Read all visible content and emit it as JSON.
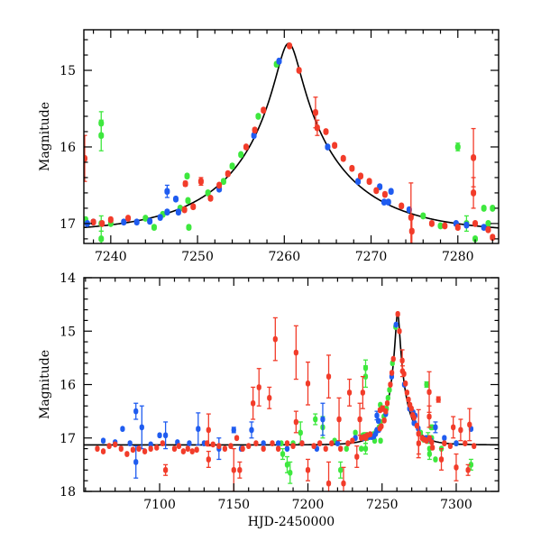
{
  "chart_data": {
    "type": "scatter",
    "colors": {
      "blue": "#1f5cf0",
      "green": "#3ee83e",
      "red": "#f23c2a",
      "model": "#000000"
    },
    "model": {
      "type": "point-lens",
      "t0": 7260.5,
      "u0": 0.102,
      "tE": 12.7,
      "baseline_mag": 17.13
    },
    "panels": [
      {
        "name": "zoom",
        "xlabel": "",
        "ylabel": "Magnitude",
        "xlim": [
          7236.9,
          7284.7
        ],
        "ylim": [
          17.26,
          14.47
        ],
        "xticks": [
          7240,
          7250,
          7260,
          7270,
          7280
        ],
        "xtick_labels": [
          "7240",
          "7250",
          "7260",
          "7270",
          "7280"
        ],
        "xminor": 2,
        "yticks": [
          15,
          16,
          17
        ],
        "ytick_labels": [
          "15",
          "16",
          "17"
        ],
        "yminor": 0.2
      },
      {
        "name": "full",
        "xlabel": "HJD-2450000",
        "ylabel": "Magnitude",
        "xlim": [
          7048.9,
          7328.6
        ],
        "ylim": [
          18,
          14
        ],
        "xticks": [
          7100,
          7150,
          7200,
          7250,
          7300
        ],
        "xtick_labels": [
          "7100",
          "7150",
          "7200",
          "7250",
          "7300"
        ],
        "xminor": 10,
        "yticks": [
          14,
          15,
          16,
          17,
          18
        ],
        "ytick_labels": [
          "14",
          "15",
          "16",
          "17",
          "18"
        ],
        "yminor": 0.2
      }
    ],
    "series": [
      {
        "name": "green",
        "color": "#3ee83e",
        "points": [
          [
            7182,
            17.1,
            0
          ],
          [
            7183,
            17.3,
            0.1
          ],
          [
            7186,
            17.5,
            0.15
          ],
          [
            7188,
            17.65,
            0.2
          ],
          [
            7190,
            17.1,
            0
          ],
          [
            7195,
            16.9,
            0.2
          ],
          [
            7205,
            16.65,
            0.1
          ],
          [
            7210,
            16.8,
            0.2
          ],
          [
            7218,
            17.05,
            0
          ],
          [
            7222,
            17.6,
            0.15
          ],
          [
            7226,
            17.2,
            0
          ],
          [
            7232,
            16.9,
            0
          ],
          [
            7236,
            17.2,
            0
          ],
          [
            7237.1,
            16.95,
            0
          ],
          [
            7238.9,
            15.69,
            0.15
          ],
          [
            7238.9,
            15.85,
            0.2
          ],
          [
            7238.9,
            17.0,
            0.1
          ],
          [
            7238.9,
            17.2,
            0.1
          ],
          [
            7240,
            17.0,
            0
          ],
          [
            7244,
            16.93,
            0
          ],
          [
            7245,
            17.05,
            0
          ],
          [
            7246,
            16.88,
            0
          ],
          [
            7248,
            16.8,
            0
          ],
          [
            7248.8,
            16.38,
            0
          ],
          [
            7248.9,
            16.7,
            0
          ],
          [
            7249,
            17.05,
            0
          ],
          [
            7251.2,
            16.6,
            0
          ],
          [
            7253,
            16.45,
            0
          ],
          [
            7254,
            16.25,
            0
          ],
          [
            7255,
            16.1,
            0
          ],
          [
            7257,
            15.6,
            0
          ],
          [
            7259.1,
            14.92,
            0
          ],
          [
            7276,
            16.9,
            0
          ],
          [
            7278,
            17.03,
            0
          ],
          [
            7280,
            16.0,
            0.05
          ],
          [
            7281,
            17.0,
            0.1
          ],
          [
            7282,
            17.2,
            0
          ],
          [
            7283,
            16.8,
            0
          ],
          [
            7283.5,
            17.0,
            0
          ],
          [
            7284,
            16.8,
            0
          ],
          [
            7282,
            17.3,
            0.1
          ],
          [
            7286,
            17.4,
            0
          ],
          [
            7290,
            17.2,
            0
          ],
          [
            7300,
            17.1,
            0
          ],
          [
            7310,
            17.5,
            0.1
          ]
        ]
      },
      {
        "name": "blue",
        "color": "#1f5cf0",
        "points": [
          [
            7062,
            17.05,
            0
          ],
          [
            7070,
            17.08,
            0
          ],
          [
            7075,
            16.83,
            0
          ],
          [
            7080,
            17.1,
            0
          ],
          [
            7084,
            16.5,
            0.15
          ],
          [
            7084,
            17.45,
            0.3
          ],
          [
            7088,
            16.8,
            0.4
          ],
          [
            7094,
            17.12,
            0
          ],
          [
            7100,
            16.95,
            0
          ],
          [
            7104,
            16.95,
            0.25
          ],
          [
            7112,
            17.08,
            0
          ],
          [
            7120,
            17.1,
            0
          ],
          [
            7126,
            16.83,
            0.3
          ],
          [
            7130,
            17.1,
            0
          ],
          [
            7140,
            17.2,
            0.2
          ],
          [
            7150,
            16.85,
            0.05
          ],
          [
            7155,
            17.2,
            0
          ],
          [
            7162,
            16.85,
            0.15
          ],
          [
            7170,
            17.1,
            0
          ],
          [
            7180,
            17.1,
            0
          ],
          [
            7186,
            17.2,
            0
          ],
          [
            7196,
            17.1,
            0
          ],
          [
            7206,
            17.2,
            0
          ],
          [
            7210,
            16.65,
            0.3
          ],
          [
            7220,
            17.1,
            0
          ],
          [
            7232,
            17.0,
            0
          ],
          [
            7237.3,
            17.0,
            0
          ],
          [
            7238,
            16.98,
            0
          ],
          [
            7241.5,
            16.98,
            0
          ],
          [
            7243,
            16.98,
            0
          ],
          [
            7244.5,
            16.97,
            0
          ],
          [
            7245.7,
            16.92,
            0
          ],
          [
            7246.5,
            16.85,
            0
          ],
          [
            7246.5,
            16.58,
            0.08
          ],
          [
            7247.5,
            16.68,
            0
          ],
          [
            7247.8,
            16.85,
            0
          ],
          [
            7252.5,
            16.55,
            0
          ],
          [
            7256.5,
            15.85,
            0
          ],
          [
            7259.4,
            14.88,
            0
          ],
          [
            7265,
            16.0,
            0
          ],
          [
            7268.5,
            16.45,
            0
          ],
          [
            7271,
            16.52,
            0
          ],
          [
            7271.5,
            16.72,
            0
          ],
          [
            7272,
            16.72,
            0
          ],
          [
            7272.3,
            16.58,
            0
          ],
          [
            7274.4,
            16.82,
            0
          ],
          [
            7279.8,
            17.0,
            0
          ],
          [
            7281,
            17.02,
            0
          ],
          [
            7283,
            17.05,
            0
          ],
          [
            7286,
            16.8,
            0.1
          ],
          [
            7292,
            17.0,
            0
          ],
          [
            7300,
            17.1,
            0
          ],
          [
            7310,
            16.83,
            0
          ]
        ]
      },
      {
        "name": "red",
        "color": "#f23c2a",
        "points": [
          [
            7058,
            17.2,
            0
          ],
          [
            7062,
            17.25,
            0
          ],
          [
            7066,
            17.15,
            0
          ],
          [
            7070,
            17.12,
            0
          ],
          [
            7074,
            17.2,
            0
          ],
          [
            7078,
            17.3,
            0
          ],
          [
            7082,
            17.22,
            0
          ],
          [
            7086,
            17.2,
            0
          ],
          [
            7090,
            17.25,
            0
          ],
          [
            7094,
            17.2,
            0
          ],
          [
            7098,
            17.18,
            0
          ],
          [
            7102,
            17.1,
            0
          ],
          [
            7104,
            17.6,
            0.1
          ],
          [
            7110,
            17.2,
            0
          ],
          [
            7113,
            17.15,
            0
          ],
          [
            7116,
            17.25,
            0
          ],
          [
            7119,
            17.2,
            0
          ],
          [
            7122,
            17.25,
            0
          ],
          [
            7125,
            17.22,
            0
          ],
          [
            7132,
            17.1,
            0
          ],
          [
            7133,
            16.85,
            0.3
          ],
          [
            7133,
            17.4,
            0.15
          ],
          [
            7136,
            17.12,
            0
          ],
          [
            7140,
            17.15,
            0
          ],
          [
            7144,
            17.2,
            0
          ],
          [
            7148,
            17.15,
            0
          ],
          [
            7150,
            17.6,
            0.4
          ],
          [
            7152,
            17.0,
            0
          ],
          [
            7154,
            17.6,
            0.15
          ],
          [
            7156,
            17.2,
            0
          ],
          [
            7160,
            17.15,
            0
          ],
          [
            7163,
            16.35,
            0.3
          ],
          [
            7165,
            17.1,
            0
          ],
          [
            7167,
            16.05,
            0.35
          ],
          [
            7170,
            17.2,
            0
          ],
          [
            7174,
            16.25,
            0.2
          ],
          [
            7176,
            17.1,
            0
          ],
          [
            7178,
            15.15,
            0.4
          ],
          [
            7180,
            17.2,
            0
          ],
          [
            7186,
            17.1,
            0
          ],
          [
            7190,
            17.15,
            0
          ],
          [
            7192,
            15.4,
            0.5
          ],
          [
            7192,
            16.7,
            0.2
          ],
          [
            7196,
            17.1,
            0
          ],
          [
            7200,
            15.98,
            0.4
          ],
          [
            7200,
            17.6,
            0.2
          ],
          [
            7204,
            17.15,
            0
          ],
          [
            7208,
            17.1,
            0
          ],
          [
            7212,
            17.2,
            0
          ],
          [
            7214,
            15.85,
            0.4
          ],
          [
            7214,
            17.85,
            0.4
          ],
          [
            7216,
            17.1,
            0
          ],
          [
            7221,
            16.65,
            0.4
          ],
          [
            7222,
            17.2,
            0
          ],
          [
            7224,
            17.85,
            0.3
          ],
          [
            7227,
            17.1,
            0
          ],
          [
            7228,
            16.15,
            0.25
          ],
          [
            7230,
            17.05,
            0
          ],
          [
            7233,
            17.35,
            0.2
          ],
          [
            7235,
            16.65,
            0.3
          ],
          [
            7236,
            17.0,
            0
          ],
          [
            7237,
            16.15,
            0.3
          ],
          [
            7238,
            16.98,
            0
          ],
          [
            7239,
            17.0,
            0
          ],
          [
            7240,
            16.95,
            0
          ],
          [
            7242,
            16.93,
            0
          ],
          [
            7248.5,
            16.82,
            0
          ],
          [
            7248.6,
            16.48,
            0.03
          ],
          [
            7249.5,
            16.78,
            0
          ],
          [
            7250.4,
            16.45,
            0.05
          ],
          [
            7251.5,
            16.67,
            0
          ],
          [
            7252.5,
            16.5,
            0
          ],
          [
            7253.5,
            16.35,
            0
          ],
          [
            7255.6,
            16.0,
            0
          ],
          [
            7256.6,
            15.78,
            0
          ],
          [
            7257.6,
            15.52,
            0
          ],
          [
            7260.6,
            14.68,
            0
          ],
          [
            7261.7,
            15.0,
            0
          ],
          [
            7263.6,
            15.55,
            0.2
          ],
          [
            7263.8,
            15.75,
            0.1
          ],
          [
            7264.8,
            15.8,
            0
          ],
          [
            7265.8,
            15.98,
            0
          ],
          [
            7266.8,
            16.15,
            0
          ],
          [
            7267.8,
            16.28,
            0
          ],
          [
            7268.8,
            16.38,
            0
          ],
          [
            7269.8,
            16.45,
            0
          ],
          [
            7270.6,
            16.57,
            0
          ],
          [
            7271.6,
            16.62,
            0
          ],
          [
            7273.5,
            16.77,
            0
          ],
          [
            7274.6,
            16.92,
            0.45
          ],
          [
            7274.7,
            17.1,
            0.2
          ],
          [
            7277,
            17.0,
            0
          ],
          [
            7278.5,
            17.03,
            0
          ],
          [
            7280,
            17.05,
            0
          ],
          [
            7281.8,
            16.14,
            0.38
          ],
          [
            7281.8,
            16.6,
            0.2
          ],
          [
            7282,
            17.0,
            0
          ],
          [
            7283.5,
            17.08,
            0
          ],
          [
            7284,
            17.18,
            0
          ],
          [
            7288,
            16.28,
            0.05
          ],
          [
            7290,
            17.4,
            0.2
          ],
          [
            7292,
            17.1,
            0
          ],
          [
            7296,
            17.15,
            0
          ],
          [
            7298,
            16.8,
            0.2
          ],
          [
            7300,
            17.55,
            0.25
          ],
          [
            7303,
            16.85,
            0.2
          ],
          [
            7306,
            17.1,
            0
          ],
          [
            7308,
            17.6,
            0.1
          ],
          [
            7309,
            16.75,
            0.3
          ],
          [
            7312,
            17.15,
            0
          ]
        ]
      }
    ]
  }
}
